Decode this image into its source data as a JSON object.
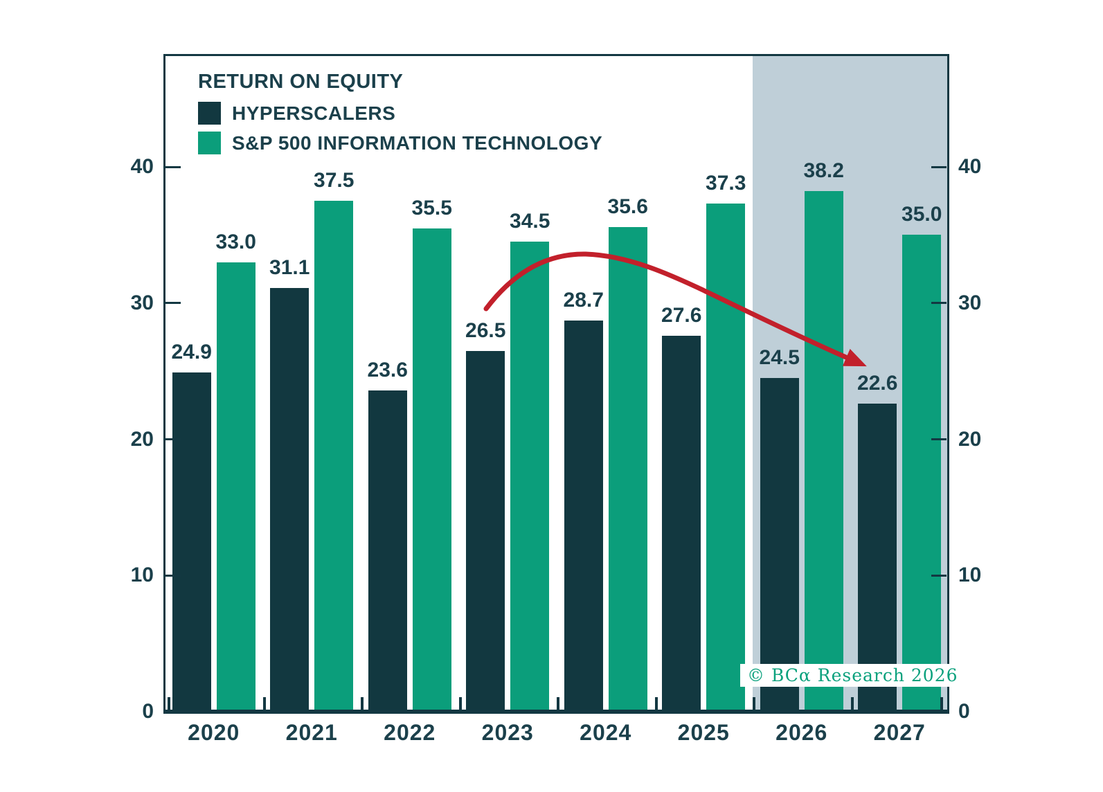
{
  "header": {
    "title": "RETURN ON EQUITY"
  },
  "legend": {
    "items": [
      {
        "label": "HYPERSCALERS",
        "color": "#123840"
      },
      {
        "label": "S&P 500 INFORMATION TECHNOLOGY",
        "color": "#0b9e7b"
      }
    ]
  },
  "watermark": {
    "text": "© BCα Research 2026",
    "color": "#0ba17d"
  },
  "chart_data": {
    "type": "bar",
    "title": "RETURN ON EQUITY",
    "categories": [
      "2020",
      "2021",
      "2022",
      "2023",
      "2024",
      "2025",
      "2026",
      "2027"
    ],
    "series": [
      {
        "name": "HYPERSCALERS",
        "color": "#123840",
        "values": [
          24.9,
          31.1,
          23.6,
          26.5,
          28.7,
          27.6,
          24.5,
          22.6
        ]
      },
      {
        "name": "S&P 500 INFORMATION TECHNOLOGY",
        "color": "#0b9e7b",
        "values": [
          33.0,
          37.5,
          35.5,
          34.5,
          35.6,
          37.3,
          38.2,
          35.0
        ]
      }
    ],
    "xlabel": "",
    "ylabel": "",
    "ylim": [
      0,
      48
    ],
    "y_ticks": [
      0,
      10,
      20,
      30,
      40
    ],
    "dual_y_axis": true,
    "grid": false,
    "legend_position": "top-left",
    "value_labels": true,
    "value_label_decimals": 1,
    "forecast_region": {
      "categories": [
        "2026",
        "2027"
      ],
      "fill": "#bfcfd8"
    },
    "annotation": {
      "type": "curved-arrow",
      "color": "#c2202b",
      "from_category": "2023",
      "to_category": "2027",
      "direction": "down"
    },
    "axis_color": "#133842",
    "text_color": "#1b404b"
  }
}
